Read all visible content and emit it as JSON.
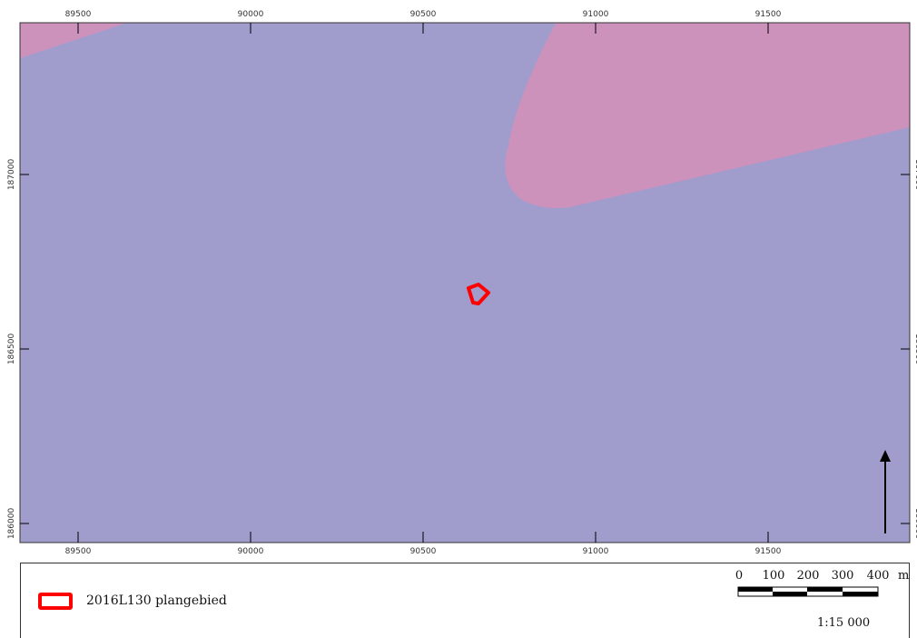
{
  "map": {
    "x_ticks": [
      "89500",
      "90000",
      "90500",
      "91000",
      "91500"
    ],
    "y_ticks": [
      "187000",
      "186500",
      "186000"
    ],
    "colors": {
      "background_zone": "#a09ccc",
      "pink_zone": "#cd92bc",
      "boundary": "#ff0000"
    }
  },
  "legend": {
    "label": "2016L130 plangebied",
    "scale_bar_labels": [
      "0",
      "100",
      "200",
      "300",
      "400"
    ],
    "scale_unit": "m",
    "scale_ratio": "1:15 000"
  }
}
